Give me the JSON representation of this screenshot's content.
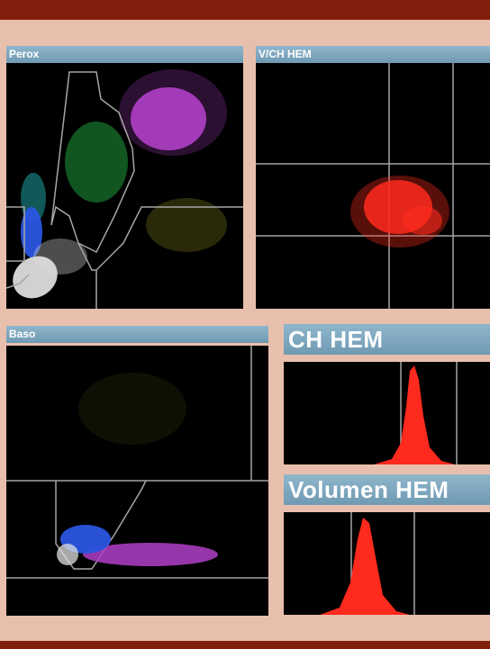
{
  "colors": {
    "frame": "#e8bfad",
    "bar": "#7f1f0c",
    "header": "#7aa4bd",
    "plot_bg": "#000000",
    "grid": "#a6a6a6",
    "histogram": "#ff2a1e"
  },
  "panels": {
    "perox": {
      "title": "Perox"
    },
    "vch": {
      "title": "V/CH HEM"
    },
    "baso": {
      "title": "Baso"
    },
    "ch_hem": {
      "title": "CH HEM"
    },
    "vol_hem": {
      "title": "Volumen HEM"
    }
  }
}
